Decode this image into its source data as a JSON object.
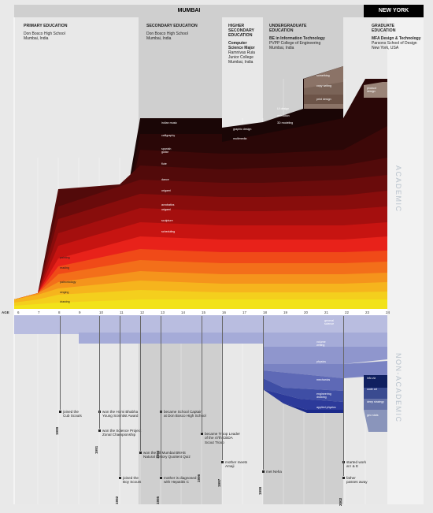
{
  "header": {
    "city_main": "MUMBAI",
    "city_second": "NEW YORK"
  },
  "stages": [
    {
      "title": "PRIMARY EDUCATION",
      "bold": "",
      "body": "Don Bosco High School\nMumbai, India"
    },
    {
      "title": "SECONDARY EDUCATION",
      "bold": "",
      "body": "Don Bosco High School\nMumbai, India"
    },
    {
      "title": "HIGHER\nSECONDARY\nEDUCATION",
      "bold": "Computer\nScience Major",
      "body": "Ramnivas Ruia\nJunior College\nMumbai, India"
    },
    {
      "title": "UNDERGRADUATE\nEDUCATION",
      "bold": "BE in Information Technology",
      "body": "PVPP College of Engineering\nMumbai, India"
    },
    {
      "title": "GRADUATE\nEDUCATION",
      "bold": "MFA Design & Technology",
      "body": "Parsons School of Design\nNew York, USA"
    }
  ],
  "side_labels": {
    "academic": "ACADEMIC",
    "non_academic": "NON-ACADEMIC"
  },
  "age_axis": {
    "label": "AGE",
    "ages": [
      "6",
      "7",
      "8",
      "9",
      "10",
      "11",
      "12",
      "13",
      "14",
      "15",
      "16",
      "17",
      "18",
      "19",
      "20",
      "21",
      "22",
      "23",
      "24"
    ]
  },
  "academic_labels": {
    "early": [
      "painting",
      "reading",
      "paleontology",
      "singing",
      "drawing"
    ],
    "secondary": [
      "indian music",
      "calligraphy",
      "spanish\nguitar",
      "flute",
      "dance",
      "origami",
      "acrobatics",
      "origami",
      "sculpture",
      "scheduling",
      "scrimming"
    ],
    "higher": [
      "graphic design",
      "multimedia"
    ],
    "undergrad": [
      "UI design",
      "animation",
      "3D modeling"
    ],
    "creative": [
      "something",
      "copy writing",
      "print design"
    ],
    "grad": [
      "product\ndesign"
    ]
  },
  "non_academic_labels": {
    "top": [
      "general\nscience"
    ],
    "mid": [
      "volume\nwriting",
      "physics"
    ],
    "low": [
      "mechanics",
      "engineering\ndrawing",
      "applied physics"
    ],
    "grad": [
      "info viz",
      "code art",
      "deep strategy",
      "geo stats"
    ]
  },
  "events": [
    {
      "year": "1989",
      "text": "joined the\nCub Scouts"
    },
    {
      "year": "1991",
      "text": "won the Homi Bhabha\nYoung Scientist Award"
    },
    {
      "year": "",
      "text": "won the Science Project\nZonal Championship"
    },
    {
      "year": "1992",
      "text": "joined the\nBoy Scouts"
    },
    {
      "year": "",
      "text": "won the All Mumbai BNHS\nNatural History Quotient Quiz"
    },
    {
      "year": "1993",
      "text": "became School Captain\nat Don Bosco High School"
    },
    {
      "year": "1995",
      "text": "mother is diagnosed\nwith Hepatitis C"
    },
    {
      "year": "1996",
      "text": "became Troop Leader\nof the 47th CBDA\nScout Troop"
    },
    {
      "year": "1997",
      "text": "mother meets\nAmaji"
    },
    {
      "year": "1999",
      "text": "met Neha"
    },
    {
      "year": "2002",
      "text": "started work\nat I & E"
    },
    {
      "year": "",
      "text": "father\npasses away"
    }
  ],
  "colors": {
    "academic_top": "#1a0606",
    "academic_mid": "#e8221a",
    "academic_low": "#f2e21a",
    "non_academic_light": "#c7cbe6",
    "non_academic_dark": "#1b2a8a",
    "grey_lane": "#cfcfcf",
    "header_black": "#000000"
  }
}
